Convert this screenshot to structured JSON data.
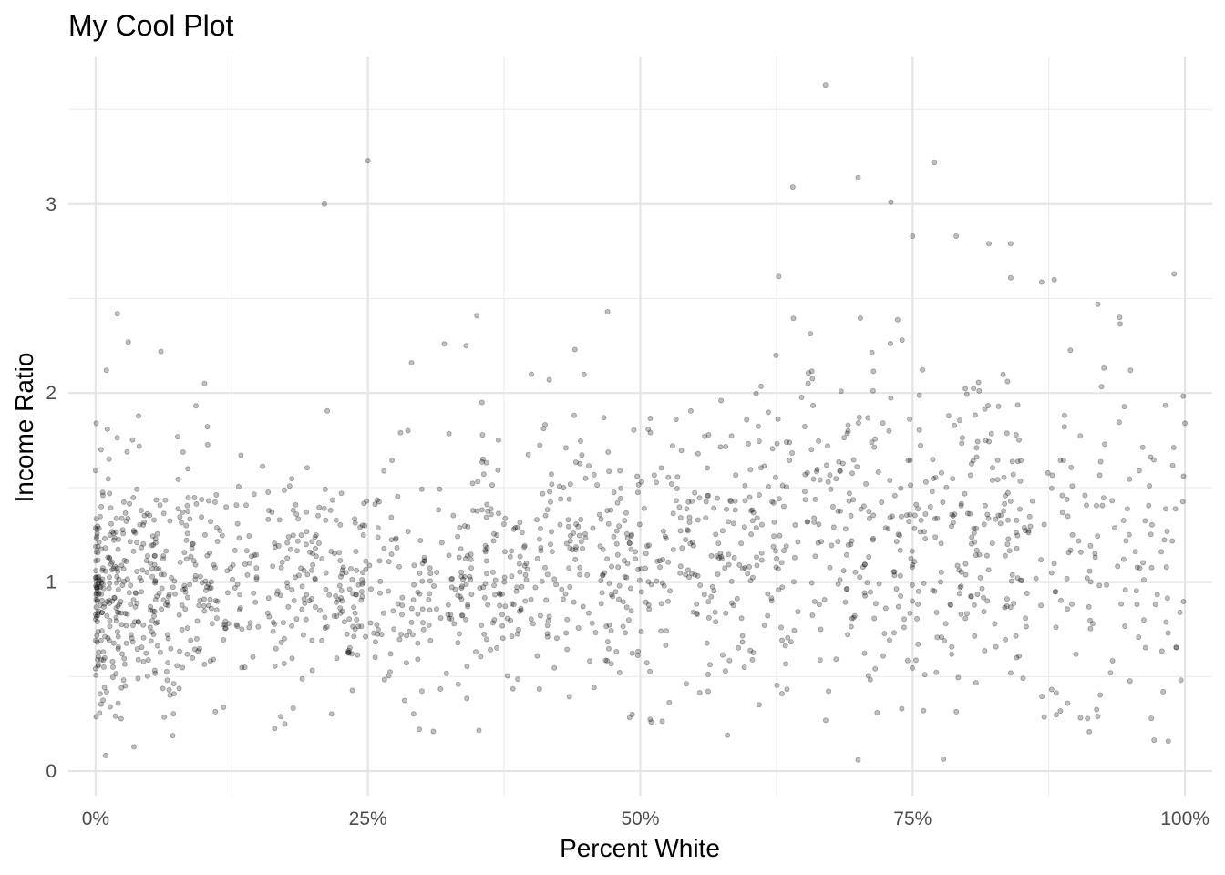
{
  "chart_data": {
    "type": "scatter",
    "title": "My Cool Plot",
    "xlabel": "Percent White",
    "ylabel": "Income Ratio",
    "xlim": [
      -0.025,
      1.025
    ],
    "ylim": [
      -0.13,
      3.78
    ],
    "x_ticks": [
      {
        "value": 0.0,
        "label": "0%"
      },
      {
        "value": 0.25,
        "label": "25%"
      },
      {
        "value": 0.5,
        "label": "50%"
      },
      {
        "value": 0.75,
        "label": "75%"
      },
      {
        "value": 1.0,
        "label": "100%"
      }
    ],
    "y_ticks": [
      {
        "value": 0,
        "label": "0"
      },
      {
        "value": 1,
        "label": "1"
      },
      {
        "value": 2,
        "label": "2"
      },
      {
        "value": 3,
        "label": "3"
      }
    ],
    "x_minor": [
      0.125,
      0.375,
      0.625,
      0.875
    ],
    "y_minor": [
      0.5,
      1.5,
      2.5,
      3.5
    ],
    "grid": true,
    "legend": "none",
    "point_color": "#000000",
    "point_alpha": 0.25,
    "point_count": 1850,
    "highlighted_points": [
      [
        0.67,
        3.63
      ],
      [
        0.25,
        3.23
      ],
      [
        0.21,
        3.0
      ],
      [
        0.77,
        3.22
      ],
      [
        0.64,
        3.09
      ],
      [
        0.7,
        3.14
      ],
      [
        0.73,
        3.01
      ],
      [
        0.75,
        2.83
      ],
      [
        0.99,
        2.63
      ],
      [
        0.7,
        0.06
      ],
      [
        0.58,
        0.19
      ],
      [
        0.51,
        0.26
      ],
      [
        0.31,
        0.21
      ],
      [
        0.02,
        2.42
      ],
      [
        0.1,
        2.05
      ],
      [
        1.0,
        1.84
      ],
      [
        0.98,
        0.42
      ],
      [
        0.84,
        2.61
      ],
      [
        0.88,
        2.6
      ],
      [
        0.92,
        2.47
      ],
      [
        0.94,
        2.4
      ],
      [
        0.95,
        2.12
      ],
      [
        0.79,
        2.83
      ],
      [
        0.82,
        2.79
      ],
      [
        0.84,
        2.79
      ],
      [
        0.005,
        1.7
      ],
      [
        0.01,
        2.12
      ],
      [
        0.03,
        2.27
      ],
      [
        0.06,
        2.22
      ],
      [
        0.35,
        2.41
      ],
      [
        0.4,
        2.1
      ],
      [
        0.44,
        2.23
      ],
      [
        0.47,
        2.43
      ],
      [
        0.28,
        1.79
      ],
      [
        0.29,
        2.16
      ],
      [
        0.32,
        2.26
      ],
      [
        0.34,
        2.25
      ],
      [
        0.74,
        0.33
      ],
      [
        0.63,
        0.41
      ],
      [
        0.76,
        0.32
      ]
    ],
    "bulk_clusters": [
      {
        "x_range": [
          0.0,
          0.12
        ],
        "y_center": 0.95,
        "y_spread": 0.33,
        "count": 420
      },
      {
        "x_range": [
          0.12,
          0.35
        ],
        "y_center": 0.97,
        "y_spread": 0.28,
        "count": 360
      },
      {
        "x_range": [
          0.35,
          0.62
        ],
        "y_center": 1.12,
        "y_spread": 0.35,
        "count": 460
      },
      {
        "x_range": [
          0.62,
          0.85
        ],
        "y_center": 1.28,
        "y_spread": 0.45,
        "count": 390
      },
      {
        "x_range": [
          0.85,
          1.0
        ],
        "y_center": 1.1,
        "y_spread": 0.45,
        "count": 150
      }
    ]
  }
}
